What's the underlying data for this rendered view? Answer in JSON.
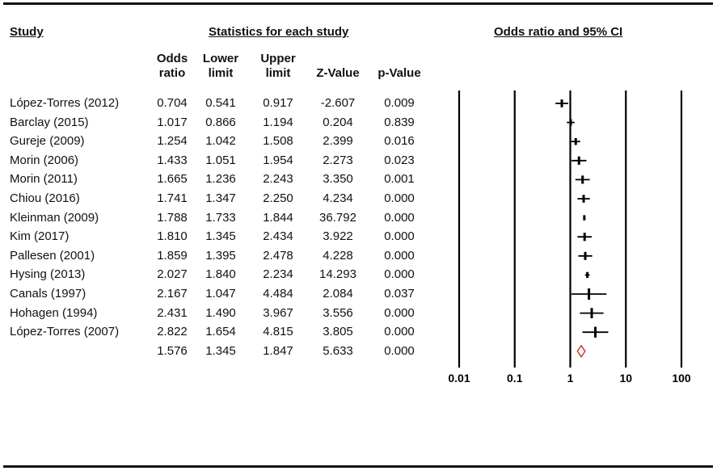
{
  "headers": {
    "study": "Study",
    "statistics": "Statistics for each study",
    "plot": "Odds ratio and 95% CI"
  },
  "columns": [
    {
      "line1": "Odds",
      "line2": "ratio"
    },
    {
      "line1": "Lower",
      "line2": "limit"
    },
    {
      "line1": "Upper",
      "line2": "limit"
    },
    {
      "line1": "",
      "line2": "Z-Value"
    },
    {
      "line1": "",
      "line2": "p-Value"
    }
  ],
  "rows": [
    {
      "study": "López-Torres (2012)",
      "or": "0.704",
      "lower": "0.541",
      "upper": "0.917",
      "z": "-2.607",
      "p": "0.009"
    },
    {
      "study": "Barclay (2015)",
      "or": "1.017",
      "lower": "0.866",
      "upper": "1.194",
      "z": "0.204",
      "p": "0.839"
    },
    {
      "study": "Gureje (2009)",
      "or": "1.254",
      "lower": "1.042",
      "upper": "1.508",
      "z": "2.399",
      "p": "0.016"
    },
    {
      "study": "Morin (2006)",
      "or": "1.433",
      "lower": "1.051",
      "upper": "1.954",
      "z": "2.273",
      "p": "0.023"
    },
    {
      "study": "Morin (2011)",
      "or": "1.665",
      "lower": "1.236",
      "upper": "2.243",
      "z": "3.350",
      "p": "0.001"
    },
    {
      "study": "Chiou (2016)",
      "or": "1.741",
      "lower": "1.347",
      "upper": "2.250",
      "z": "4.234",
      "p": "0.000"
    },
    {
      "study": "Kleinman (2009)",
      "or": "1.788",
      "lower": "1.733",
      "upper": "1.844",
      "z": "36.792",
      "p": "0.000"
    },
    {
      "study": "Kim (2017)",
      "or": "1.810",
      "lower": "1.345",
      "upper": "2.434",
      "z": "3.922",
      "p": "0.000"
    },
    {
      "study": "Pallesen (2001)",
      "or": "1.859",
      "lower": "1.395",
      "upper": "2.478",
      "z": "4.228",
      "p": "0.000"
    },
    {
      "study": "Hysing (2013)",
      "or": "2.027",
      "lower": "1.840",
      "upper": "2.234",
      "z": "14.293",
      "p": "0.000"
    },
    {
      "study": "Canals (1997)",
      "or": "2.167",
      "lower": "1.047",
      "upper": "4.484",
      "z": "2.084",
      "p": "0.037"
    },
    {
      "study": "Hohagen (1994)",
      "or": "2.431",
      "lower": "1.490",
      "upper": "3.967",
      "z": "3.556",
      "p": "0.000"
    },
    {
      "study": "López-Torres (2007)",
      "or": "2.822",
      "lower": "1.654",
      "upper": "4.815",
      "z": "3.805",
      "p": "0.000"
    }
  ],
  "pooled": {
    "study": "",
    "or": "1.576",
    "lower": "1.345",
    "upper": "1.847",
    "z": "5.633",
    "p": "0.000"
  },
  "chart_data": {
    "type": "forest",
    "scale": "log",
    "xlim": [
      0.01,
      100
    ],
    "ticks": [
      {
        "value": 0.01,
        "label": "0.01"
      },
      {
        "value": 0.1,
        "label": "0.1"
      },
      {
        "value": 1,
        "label": "1"
      },
      {
        "value": 10,
        "label": "10"
      },
      {
        "value": 100,
        "label": "100"
      }
    ],
    "colors": {
      "study": "#000000",
      "pooled": "#c0392b"
    }
  }
}
